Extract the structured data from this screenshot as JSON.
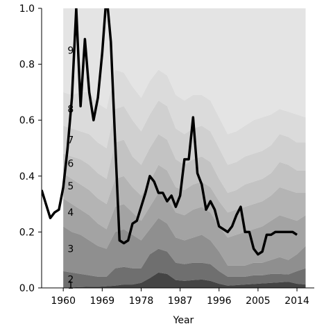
{
  "chart_data": {
    "type": "area",
    "title": "",
    "xlabel": "Year",
    "ylabel": "",
    "xlim": [
      1955,
      2018
    ],
    "ylim": [
      0,
      1
    ],
    "xticks": [
      1960,
      1969,
      1978,
      1987,
      1996,
      2005,
      2014
    ],
    "yticks": [
      0.0,
      0.2,
      0.4,
      0.6,
      0.8,
      1.0
    ],
    "ytick_labels": [
      "0.0",
      "0.2",
      "0.4",
      "0.6",
      "0.8",
      "1.0"
    ],
    "grid": false,
    "legend": "none",
    "band_labels": [
      "1",
      "2",
      "3",
      "4",
      "5",
      "6",
      "7",
      "8",
      "9"
    ],
    "band_colors": [
      "#444444",
      "#6f6f6f",
      "#8f8f8f",
      "#a3a3a3",
      "#b4b4b4",
      "#c3c3c3",
      "#d0d0d0",
      "#dbdbdb",
      "#e4e4e4"
    ],
    "areas_x_start": 1960,
    "areas_x_end": 2016,
    "boundaries": [
      {
        "x": [
          1960,
          1962,
          1964,
          1966,
          1968,
          1970,
          1972,
          1974,
          1976,
          1978,
          1980,
          1982,
          1984,
          1986,
          1988,
          1990,
          1992,
          1994,
          1996,
          1998,
          2000,
          2002,
          2004,
          2006,
          2008,
          2010,
          2012,
          2014,
          2016
        ],
        "y": [
          0.002,
          0.002,
          0.003,
          0.004,
          0.004,
          0.006,
          0.008,
          0.012,
          0.012,
          0.018,
          0.035,
          0.055,
          0.05,
          0.028,
          0.025,
          0.028,
          0.03,
          0.025,
          0.015,
          0.008,
          0.01,
          0.012,
          0.014,
          0.016,
          0.018,
          0.02,
          0.022,
          0.015,
          0.012
        ]
      },
      {
        "x": [
          1960,
          1962,
          1964,
          1966,
          1968,
          1970,
          1972,
          1974,
          1976,
          1978,
          1980,
          1982,
          1984,
          1986,
          1988,
          1990,
          1992,
          1994,
          1996,
          1998,
          2000,
          2002,
          2004,
          2006,
          2008,
          2010,
          2012,
          2014,
          2016
        ],
        "y": [
          0.06,
          0.055,
          0.05,
          0.045,
          0.04,
          0.04,
          0.07,
          0.075,
          0.07,
          0.07,
          0.12,
          0.14,
          0.13,
          0.09,
          0.085,
          0.09,
          0.09,
          0.085,
          0.06,
          0.04,
          0.04,
          0.04,
          0.045,
          0.045,
          0.05,
          0.05,
          0.048,
          0.06,
          0.07
        ]
      },
      {
        "x": [
          1960,
          1962,
          1964,
          1966,
          1968,
          1970,
          1972,
          1974,
          1976,
          1978,
          1980,
          1982,
          1984,
          1986,
          1988,
          1990,
          1992,
          1994,
          1996,
          1998,
          2000,
          2002,
          2004,
          2006,
          2008,
          2010,
          2012,
          2014,
          2016
        ],
        "y": [
          0.22,
          0.2,
          0.19,
          0.17,
          0.15,
          0.14,
          0.2,
          0.21,
          0.19,
          0.17,
          0.21,
          0.25,
          0.23,
          0.18,
          0.17,
          0.18,
          0.19,
          0.17,
          0.13,
          0.08,
          0.08,
          0.08,
          0.09,
          0.09,
          0.1,
          0.11,
          0.1,
          0.12,
          0.15
        ]
      },
      {
        "x": [
          1960,
          1962,
          1964,
          1966,
          1968,
          1970,
          1972,
          1974,
          1976,
          1978,
          1980,
          1982,
          1984,
          1986,
          1988,
          1990,
          1992,
          1994,
          1996,
          1998,
          2000,
          2002,
          2004,
          2006,
          2008,
          2010,
          2012,
          2014,
          2016
        ],
        "y": [
          0.32,
          0.3,
          0.28,
          0.26,
          0.23,
          0.21,
          0.29,
          0.3,
          0.27,
          0.24,
          0.29,
          0.34,
          0.32,
          0.27,
          0.26,
          0.28,
          0.29,
          0.27,
          0.22,
          0.18,
          0.19,
          0.2,
          0.21,
          0.22,
          0.24,
          0.26,
          0.25,
          0.24,
          0.26
        ]
      },
      {
        "x": [
          1960,
          1962,
          1964,
          1966,
          1968,
          1970,
          1972,
          1974,
          1976,
          1978,
          1980,
          1982,
          1984,
          1986,
          1988,
          1990,
          1992,
          1994,
          1996,
          1998,
          2000,
          2002,
          2004,
          2006,
          2008,
          2010,
          2012,
          2014,
          2016
        ],
        "y": [
          0.41,
          0.39,
          0.37,
          0.35,
          0.32,
          0.3,
          0.39,
          0.4,
          0.36,
          0.33,
          0.38,
          0.44,
          0.42,
          0.36,
          0.35,
          0.37,
          0.38,
          0.36,
          0.31,
          0.27,
          0.28,
          0.29,
          0.3,
          0.31,
          0.33,
          0.36,
          0.35,
          0.34,
          0.34
        ]
      },
      {
        "x": [
          1960,
          1962,
          1964,
          1966,
          1968,
          1970,
          1972,
          1974,
          1976,
          1978,
          1980,
          1982,
          1984,
          1986,
          1988,
          1990,
          1992,
          1994,
          1996,
          1998,
          2000,
          2002,
          2004,
          2006,
          2008,
          2010,
          2012,
          2014,
          2016
        ],
        "y": [
          0.48,
          0.47,
          0.46,
          0.44,
          0.41,
          0.39,
          0.52,
          0.53,
          0.47,
          0.44,
          0.5,
          0.55,
          0.53,
          0.46,
          0.44,
          0.46,
          0.47,
          0.45,
          0.39,
          0.34,
          0.35,
          0.37,
          0.38,
          0.39,
          0.41,
          0.45,
          0.44,
          0.42,
          0.42
        ]
      },
      {
        "x": [
          1960,
          1962,
          1964,
          1966,
          1968,
          1970,
          1972,
          1974,
          1976,
          1978,
          1980,
          1982,
          1984,
          1986,
          1988,
          1990,
          1992,
          1994,
          1996,
          1998,
          2000,
          2002,
          2004,
          2006,
          2008,
          2010,
          2012,
          2014,
          2016
        ],
        "y": [
          0.58,
          0.57,
          0.56,
          0.55,
          0.52,
          0.5,
          0.64,
          0.65,
          0.6,
          0.56,
          0.62,
          0.67,
          0.65,
          0.57,
          0.55,
          0.57,
          0.58,
          0.56,
          0.5,
          0.44,
          0.45,
          0.47,
          0.48,
          0.49,
          0.51,
          0.55,
          0.54,
          0.52,
          0.52
        ]
      },
      {
        "x": [
          1960,
          1962,
          1964,
          1966,
          1968,
          1970,
          1972,
          1974,
          1976,
          1978,
          1980,
          1982,
          1984,
          1986,
          1988,
          1990,
          1992,
          1994,
          1996,
          1998,
          2000,
          2002,
          2004,
          2006,
          2008,
          2010,
          2012,
          2014,
          2016
        ],
        "y": [
          0.7,
          0.69,
          0.7,
          0.7,
          0.66,
          0.64,
          0.78,
          0.77,
          0.72,
          0.68,
          0.74,
          0.78,
          0.76,
          0.69,
          0.67,
          0.69,
          0.69,
          0.67,
          0.61,
          0.55,
          0.56,
          0.58,
          0.6,
          0.61,
          0.62,
          0.64,
          0.63,
          0.62,
          0.61
        ]
      },
      {
        "x": [
          1960,
          1962,
          1964,
          1966,
          1968,
          1970,
          1972,
          1974,
          1976,
          1978,
          1980,
          1982,
          1984,
          1986,
          1988,
          1990,
          1992,
          1994,
          1996,
          1998,
          2000,
          2002,
          2004,
          2006,
          2008,
          2010,
          2012,
          2014,
          2016
        ],
        "y": [
          0.84,
          0.84,
          0.85,
          0.86,
          0.85,
          0.83,
          0.9,
          0.88,
          0.84,
          0.82,
          0.86,
          0.88,
          0.86,
          0.81,
          0.8,
          0.81,
          0.81,
          0.78,
          0.75,
          0.7,
          0.71,
          0.72,
          0.72,
          0.72,
          0.73,
          0.73,
          0.72,
          0.68,
          0.68
        ]
      }
    ],
    "series": [
      {
        "x": [
          1955,
          1956,
          1957,
          1958,
          1959,
          1960,
          1961,
          1962,
          1963,
          1964,
          1965,
          1966,
          1967,
          1968,
          1969,
          1970,
          1971,
          1972,
          1973,
          1974,
          1975,
          1976,
          1977,
          1978,
          1979,
          1980,
          1981,
          1982,
          1983,
          1984,
          1985,
          1986,
          1987,
          1988,
          1989,
          1990,
          1991,
          1992,
          1993,
          1994,
          1995,
          1996,
          1997,
          1998,
          1999,
          2000,
          2001,
          2002,
          2003,
          2004,
          2005,
          2006,
          2007,
          2008,
          2009,
          2010,
          2011,
          2012,
          2013,
          2014
        ],
        "y": [
          0.35,
          0.3,
          0.25,
          0.27,
          0.28,
          0.36,
          0.5,
          0.68,
          1.0,
          0.65,
          0.89,
          0.7,
          0.6,
          0.68,
          0.84,
          1.05,
          0.88,
          0.52,
          0.17,
          0.16,
          0.17,
          0.23,
          0.24,
          0.29,
          0.34,
          0.4,
          0.38,
          0.34,
          0.34,
          0.31,
          0.33,
          0.29,
          0.33,
          0.46,
          0.46,
          0.61,
          0.41,
          0.37,
          0.28,
          0.31,
          0.28,
          0.22,
          0.21,
          0.2,
          0.22,
          0.26,
          0.29,
          0.2,
          0.2,
          0.14,
          0.12,
          0.13,
          0.19,
          0.19,
          0.2,
          0.2,
          0.2,
          0.2,
          0.2,
          0.19
        ]
      }
    ]
  }
}
